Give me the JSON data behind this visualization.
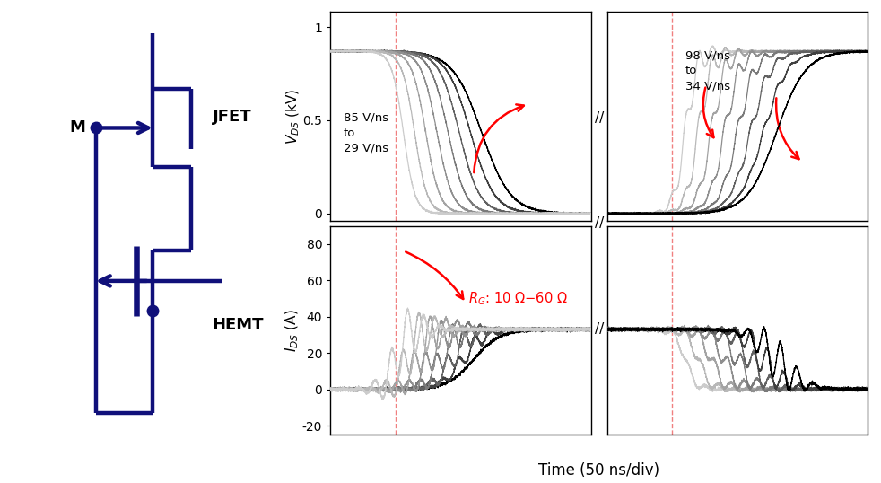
{
  "fig_width": 9.82,
  "fig_height": 5.38,
  "dpi": 100,
  "circuit_color": "#10107a",
  "circuit_linewidth": 3.2,
  "n_curves": 8,
  "gray_levels": [
    0.8,
    0.72,
    0.64,
    0.56,
    0.48,
    0.38,
    0.25,
    0.0
  ],
  "vds_high": 0.87,
  "ids_on": 33.0,
  "dashed_line_color": "#f08080",
  "xlabel": "Time (50 ns/div)",
  "ylabel_top": "$V_{DS}$ (kV)",
  "ylabel_bottom": "$I_{DS}$ (A)",
  "text_turnoff": "85 V/ns\nto\n29 V/ns",
  "text_turnon": "98 V/ns\nto\n34 V/ns",
  "text_rg": "$R_G$: 10 Ω−60 Ω"
}
